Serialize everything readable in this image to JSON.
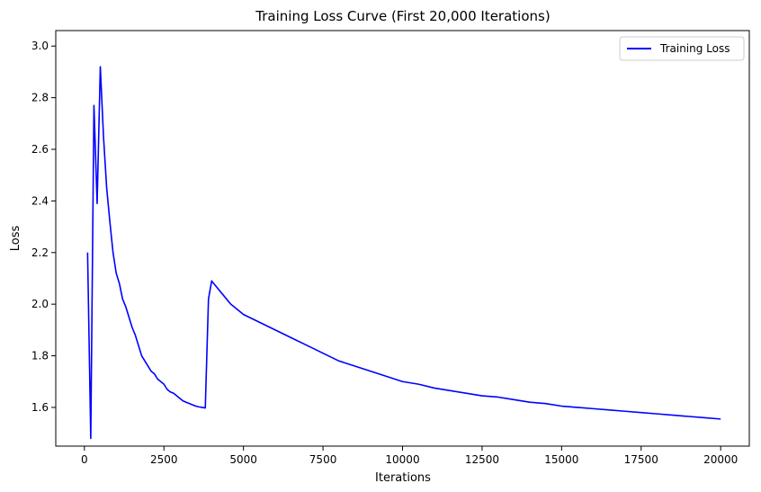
{
  "chart_data": {
    "type": "line",
    "title": "Training Loss Curve (First 20,000 Iterations)",
    "xlabel": "Iterations",
    "ylabel": "Loss",
    "xlim": [
      -900,
      20900
    ],
    "ylim": [
      1.45,
      3.06
    ],
    "xticks": [
      0,
      2500,
      5000,
      7500,
      10000,
      12500,
      15000,
      17500,
      20000
    ],
    "xtick_labels": [
      "0",
      "2500",
      "5000",
      "7500",
      "10000",
      "12500",
      "15000",
      "17500",
      "20000"
    ],
    "yticks": [
      1.6,
      1.8,
      2.0,
      2.2,
      2.4,
      2.6,
      2.8,
      3.0
    ],
    "ytick_labels": [
      "1.6",
      "1.8",
      "2.0",
      "2.2",
      "2.4",
      "2.6",
      "2.8",
      "3.0"
    ],
    "grid": false,
    "legend_position": "top-right",
    "series": [
      {
        "name": "Training Loss",
        "color": "#0000ff",
        "x": [
          100,
          200,
          300,
          400,
          500,
          600,
          700,
          800,
          900,
          1000,
          1100,
          1200,
          1300,
          1400,
          1500,
          1600,
          1700,
          1800,
          1900,
          2000,
          2100,
          2200,
          2300,
          2400,
          2500,
          2600,
          2700,
          2800,
          2900,
          3000,
          3100,
          3200,
          3300,
          3400,
          3500,
          3600,
          3700,
          3800,
          3900,
          4000,
          4200,
          4400,
          4600,
          4800,
          5000,
          5500,
          6000,
          6500,
          7000,
          7500,
          8000,
          8500,
          9000,
          9500,
          10000,
          10500,
          11000,
          11500,
          12000,
          12500,
          13000,
          13500,
          14000,
          14500,
          15000,
          15500,
          16000,
          16500,
          17000,
          17500,
          18000,
          18500,
          19000,
          19500,
          20000
        ],
        "y": [
          2.2,
          1.48,
          2.77,
          2.39,
          2.92,
          2.65,
          2.45,
          2.32,
          2.2,
          2.12,
          2.08,
          2.02,
          1.99,
          1.95,
          1.91,
          1.88,
          1.84,
          1.8,
          1.78,
          1.76,
          1.74,
          1.73,
          1.71,
          1.7,
          1.69,
          1.67,
          1.66,
          1.655,
          1.645,
          1.635,
          1.625,
          1.62,
          1.615,
          1.61,
          1.605,
          1.602,
          1.6,
          1.598,
          2.02,
          2.09,
          2.06,
          2.03,
          2.0,
          1.98,
          1.96,
          1.93,
          1.9,
          1.87,
          1.84,
          1.81,
          1.78,
          1.76,
          1.74,
          1.72,
          1.7,
          1.69,
          1.675,
          1.665,
          1.655,
          1.645,
          1.64,
          1.63,
          1.62,
          1.615,
          1.605,
          1.6,
          1.595,
          1.59,
          1.585,
          1.58,
          1.575,
          1.57,
          1.565,
          1.56,
          1.555
        ]
      }
    ]
  }
}
